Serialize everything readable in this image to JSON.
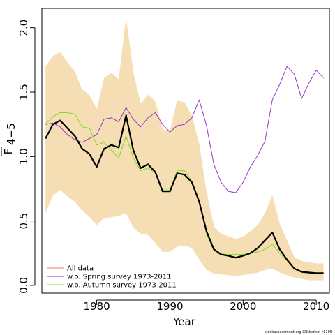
{
  "chart_data": {
    "type": "line",
    "xlabel": "Year",
    "ylabel": "F",
    "ylabel_bar": "—",
    "ylabel_sub": "4−5",
    "xlim": [
      1972.5,
      2011.8
    ],
    "ylim": [
      -0.06,
      2.15
    ],
    "x_ticks": [
      1980,
      1990,
      2000,
      2010
    ],
    "y_ticks": [
      0.0,
      0.5,
      1.0,
      1.5,
      2.0
    ],
    "y_tick_labels": [
      "0.0",
      "0.5",
      "1.0",
      "1.5",
      "2.0"
    ],
    "x": [
      1973,
      1974,
      1975,
      1976,
      1977,
      1978,
      1979,
      1980,
      1981,
      1982,
      1983,
      1984,
      1985,
      1986,
      1987,
      1988,
      1989,
      1990,
      1991,
      1992,
      1993,
      1994,
      1995,
      1996,
      1997,
      1998,
      1999,
      2000,
      2001,
      2002,
      2003,
      2004,
      2005,
      2006,
      2007,
      2008,
      2009,
      2010,
      2011
    ],
    "band": {
      "name": "confidence band",
      "color": "#f5deb3",
      "upper": [
        1.7,
        1.78,
        1.81,
        1.73,
        1.66,
        1.52,
        1.48,
        1.37,
        1.61,
        1.65,
        1.6,
        2.08,
        1.66,
        1.41,
        1.48,
        1.43,
        1.21,
        1.2,
        1.44,
        1.42,
        1.32,
        1.1,
        0.73,
        0.46,
        0.4,
        0.38,
        0.36,
        0.38,
        0.42,
        0.47,
        0.56,
        0.7,
        0.48,
        0.35,
        0.22,
        0.19,
        0.18,
        0.17,
        0.17
      ],
      "lower": [
        0.56,
        0.7,
        0.74,
        0.69,
        0.65,
        0.58,
        0.53,
        0.47,
        0.52,
        0.53,
        0.54,
        0.56,
        0.45,
        0.4,
        0.39,
        0.33,
        0.26,
        0.26,
        0.3,
        0.31,
        0.29,
        0.2,
        0.12,
        0.09,
        0.085,
        0.08,
        0.075,
        0.08,
        0.09,
        0.1,
        0.12,
        0.13,
        0.1,
        0.08,
        0.06,
        0.05,
        0.04,
        0.04,
        0.04
      ]
    },
    "series": [
      {
        "key": "main",
        "color": "#000000",
        "width": 2.2,
        "values": [
          1.14,
          1.25,
          1.28,
          1.22,
          1.16,
          1.06,
          1.02,
          0.92,
          1.06,
          1.09,
          1.07,
          1.32,
          1.05,
          0.91,
          0.94,
          0.88,
          0.73,
          0.73,
          0.87,
          0.86,
          0.8,
          0.65,
          0.42,
          0.28,
          0.24,
          0.23,
          0.215,
          0.23,
          0.25,
          0.29,
          0.35,
          0.41,
          0.28,
          0.2,
          0.13,
          0.105,
          0.1,
          0.095,
          0.095
        ]
      },
      {
        "key": "spring",
        "name": "w.o. Spring survey 1973-2011",
        "color": "#9932cc",
        "width": 1,
        "values": [
          1.25,
          1.26,
          1.23,
          1.17,
          1.13,
          1.11,
          1.14,
          1.17,
          1.29,
          1.3,
          1.27,
          1.38,
          1.29,
          1.23,
          1.3,
          1.34,
          1.25,
          1.19,
          1.24,
          1.25,
          1.3,
          1.44,
          1.24,
          0.94,
          0.8,
          0.73,
          0.72,
          0.8,
          0.92,
          1.01,
          1.12,
          1.44,
          1.56,
          1.7,
          1.64,
          1.45,
          1.57,
          1.67,
          1.61
        ]
      },
      {
        "key": "autumn",
        "name": "w.o. Autumn survey 1973-2011",
        "color": "#7fdc1f",
        "width": 1,
        "values": [
          1.25,
          1.31,
          1.34,
          1.34,
          1.33,
          1.23,
          1.22,
          1.09,
          1.11,
          1.05,
          0.99,
          1.16,
          0.99,
          0.89,
          0.91,
          0.87,
          0.74,
          0.74,
          0.89,
          0.89,
          0.81,
          0.66,
          0.4,
          0.27,
          0.245,
          0.24,
          0.24,
          0.24,
          0.25,
          0.26,
          0.28,
          0.32,
          0.25,
          0.19,
          0.13,
          0.1,
          0.095,
          0.09,
          0.09
        ]
      }
    ],
    "legend": {
      "position": "bottom-left",
      "entries": [
        {
          "label": "All data",
          "color": "#ff6b6b"
        },
        {
          "label": "w.o. Spring survey 1973-2011",
          "color": "#9932cc"
        },
        {
          "label": "w.o. Autumn survey 1973-2011",
          "color": "#7fdc1f"
        }
      ]
    }
  },
  "footer": "stockassessment.org  GENeutral_r1105"
}
